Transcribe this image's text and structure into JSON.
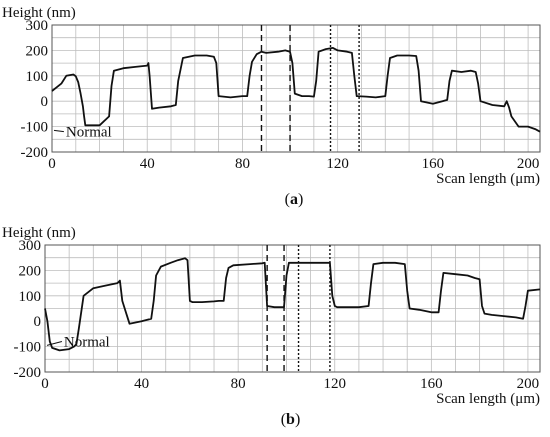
{
  "chart_data": [
    {
      "panel": "(a)",
      "panel_letter": "a",
      "type": "line",
      "ylabel": "Height (nm)",
      "xlabel": "Scan length (μm)",
      "annotation": "Normal",
      "xlim": [
        0,
        205
      ],
      "ylim": [
        -200,
        300
      ],
      "xticks": [
        0,
        40,
        80,
        120,
        160,
        200
      ],
      "yticks": [
        -200,
        -100,
        0,
        100,
        200,
        300
      ],
      "grid": true,
      "dashed_markers_x": [
        88,
        100
      ],
      "dotted_markers_x": [
        117,
        129
      ],
      "x": [
        0,
        2,
        4,
        6,
        9,
        10,
        11,
        12,
        13,
        13.5,
        14,
        20,
        24,
        25,
        26,
        30,
        35,
        40,
        40.5,
        41,
        42,
        45,
        50,
        52,
        53,
        55,
        60,
        65,
        68,
        69,
        70,
        75,
        80,
        82,
        83,
        84,
        86,
        88,
        90,
        95,
        98,
        100,
        101,
        102,
        105,
        108,
        110,
        111,
        112,
        115,
        118,
        120,
        124,
        126,
        127,
        128,
        132,
        136,
        140,
        141,
        142,
        145,
        150,
        153,
        154,
        155,
        160,
        164,
        166,
        167,
        168,
        172,
        176,
        178,
        179,
        180,
        185,
        190,
        191,
        192,
        193,
        196,
        200,
        203,
        205
      ],
      "y": [
        40,
        55,
        70,
        100,
        105,
        98,
        75,
        30,
        -20,
        -60,
        -95,
        -95,
        -60,
        60,
        120,
        130,
        135,
        140,
        150,
        100,
        -30,
        -25,
        -20,
        -15,
        80,
        170,
        180,
        180,
        175,
        150,
        20,
        15,
        20,
        20,
        100,
        155,
        185,
        195,
        190,
        195,
        200,
        195,
        150,
        30,
        20,
        20,
        18,
        80,
        195,
        205,
        210,
        200,
        195,
        190,
        100,
        20,
        18,
        15,
        20,
        100,
        170,
        180,
        180,
        178,
        120,
        0,
        -10,
        0,
        5,
        80,
        120,
        115,
        120,
        115,
        70,
        0,
        -15,
        -20,
        0,
        -25,
        -60,
        -100,
        -100,
        -110,
        -120
      ]
    },
    {
      "panel": "(b)",
      "panel_letter": "b",
      "type": "line",
      "ylabel": "Height (nm)",
      "xlabel": "Scan length (μm)",
      "annotation": "Normal",
      "xlim": [
        0,
        205
      ],
      "ylim": [
        -200,
        300
      ],
      "xticks": [
        0,
        40,
        80,
        120,
        160,
        200
      ],
      "yticks": [
        -200,
        -100,
        0,
        100,
        200,
        300
      ],
      "grid": true,
      "dashed_markers_x": [
        92,
        99
      ],
      "dotted_markers_x": [
        105,
        118
      ],
      "x": [
        0,
        1,
        2,
        3,
        6,
        10,
        12,
        13,
        14,
        16,
        20,
        25,
        30,
        31,
        32,
        35,
        40,
        44,
        45,
        46,
        48,
        52,
        55,
        58,
        59,
        60,
        61,
        62,
        65,
        70,
        72,
        74,
        75,
        76,
        78,
        85,
        90,
        91,
        92,
        95,
        99,
        100,
        101,
        104,
        110,
        115,
        118,
        119,
        120,
        121,
        125,
        130,
        134,
        135,
        136,
        140,
        145,
        149,
        150,
        151,
        155,
        160,
        163,
        164,
        165,
        170,
        175,
        178,
        180,
        181,
        182,
        185,
        190,
        195,
        198,
        199,
        200,
        205
      ],
      "y": [
        50,
        0,
        -80,
        -105,
        -115,
        -110,
        -100,
        -90,
        -30,
        100,
        130,
        140,
        150,
        160,
        80,
        -10,
        0,
        10,
        80,
        180,
        215,
        230,
        240,
        248,
        240,
        80,
        75,
        75,
        75,
        78,
        80,
        80,
        170,
        210,
        220,
        225,
        228,
        230,
        60,
        55,
        55,
        180,
        230,
        230,
        230,
        230,
        230,
        100,
        60,
        55,
        55,
        55,
        60,
        150,
        225,
        230,
        230,
        225,
        120,
        50,
        45,
        35,
        35,
        120,
        190,
        185,
        180,
        170,
        165,
        60,
        30,
        25,
        20,
        15,
        10,
        60,
        120,
        125
      ]
    }
  ]
}
